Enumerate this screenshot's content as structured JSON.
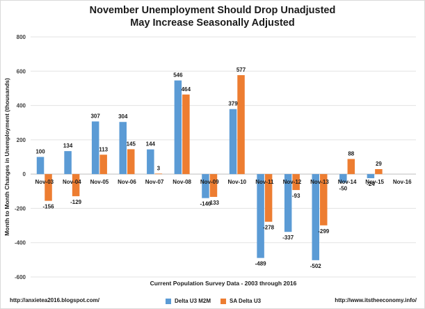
{
  "chart_data": {
    "type": "bar",
    "title": "November Unemployment Should Drop Unadjusted",
    "subtitle": "May Increase Seasonally Adjusted",
    "ylabel": "Month to Month Changes in Unemployment (thousands)",
    "xlabel": "Current Population Survey Data - 2003 through 2016",
    "ylim": [
      -600,
      800
    ],
    "yticks": [
      800,
      600,
      400,
      200,
      0,
      -200,
      -400,
      -600
    ],
    "grid": true,
    "legend_position": "bottom",
    "categories": [
      "Nov-03",
      "Nov-04",
      "Nov-05",
      "Nov-06",
      "Nov-07",
      "Nov-08",
      "Nov-09",
      "Nov-10",
      "Nov-11",
      "Nov-12",
      "Nov-13",
      "Nov-14",
      "Nov-15",
      "Nov-16"
    ],
    "series": [
      {
        "name": "Delta U3 M2M",
        "color": "#5b9bd5",
        "values": [
          100,
          134,
          307,
          304,
          144,
          546,
          -140,
          379,
          -489,
          -337,
          -502,
          -50,
          -24,
          null
        ]
      },
      {
        "name": "SA Delta U3",
        "color": "#ed7d31",
        "values": [
          -156,
          -129,
          113,
          145,
          3,
          464,
          -133,
          577,
          -278,
          -93,
          -299,
          88,
          29,
          null
        ]
      }
    ]
  },
  "footer": {
    "left": "http://anxietea2016.blogspot.com/",
    "right": "http://www.itstheeconomy.info/"
  }
}
